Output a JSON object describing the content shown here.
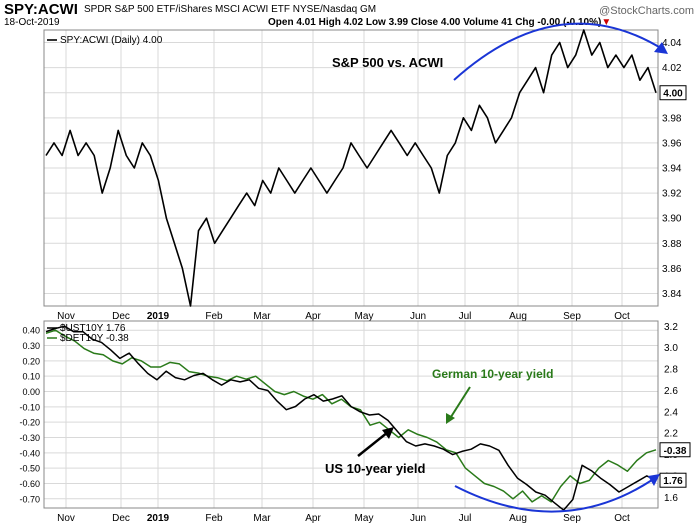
{
  "header": {
    "symbol": "SPY:ACWI",
    "description": "SPDR S&P 500 ETF/iShares MSCI ACWI ETF  NYSE/Nasdaq GM",
    "date": "18-Oct-2019",
    "ohlc": {
      "open": "Open 4.01",
      "high": "High 4.02",
      "low": "Low 3.99",
      "close": "Close 4.00",
      "volume": "Volume 41",
      "chg": "Chg -0.00 (-0.10%)"
    },
    "logo": "@StockCharts.com"
  },
  "colors": {
    "price": "#000000",
    "german": "#2a7a1a",
    "arrow": "#1a35d6",
    "grid": "#d9d9d9"
  },
  "chart_data": [
    {
      "type": "line",
      "legend": "SPY:ACWI (Daily) 4.00",
      "annotation": "S&P 500 vs. ACWI",
      "last_value_label": "4.00",
      "y_ticks": [
        "4.04",
        "4.02",
        "4.00",
        "3.98",
        "3.96",
        "3.94",
        "3.92",
        "3.90",
        "3.88",
        "3.86",
        "3.84"
      ],
      "ylim": [
        3.83,
        4.05
      ],
      "x_ticks": [
        "Nov",
        "Dec",
        "2019",
        "Feb",
        "Mar",
        "Apr",
        "May",
        "Jun",
        "Jul",
        "Aug",
        "Sep",
        "Oct"
      ],
      "series": [
        {
          "name": "SPY:ACWI",
          "values": [
            3.95,
            3.96,
            3.95,
            3.97,
            3.95,
            3.96,
            3.95,
            3.92,
            3.94,
            3.97,
            3.95,
            3.94,
            3.96,
            3.95,
            3.93,
            3.9,
            3.88,
            3.86,
            3.83,
            3.89,
            3.9,
            3.88,
            3.89,
            3.9,
            3.91,
            3.92,
            3.91,
            3.93,
            3.92,
            3.94,
            3.93,
            3.92,
            3.93,
            3.94,
            3.93,
            3.92,
            3.93,
            3.94,
            3.96,
            3.95,
            3.94,
            3.95,
            3.96,
            3.97,
            3.96,
            3.95,
            3.96,
            3.95,
            3.94,
            3.92,
            3.95,
            3.96,
            3.98,
            3.97,
            3.99,
            3.98,
            3.96,
            3.97,
            3.98,
            4.0,
            4.01,
            4.02,
            4.0,
            4.03,
            4.04,
            4.02,
            4.03,
            4.05,
            4.03,
            4.04,
            4.02,
            4.03,
            4.02,
            4.03,
            4.01,
            4.02,
            4.0
          ]
        }
      ]
    },
    {
      "type": "line",
      "legend": [
        "$UST10Y 1.76",
        "$DET10Y -0.38"
      ],
      "annotations": [
        "German 10-year yield",
        "US 10-year yield"
      ],
      "last_value_labels": [
        "-0.38",
        "1.76"
      ],
      "left_ticks": [
        "0.40",
        "0.30",
        "0.20",
        "0.10",
        "0.00",
        "-0.10",
        "-0.20",
        "-0.30",
        "-0.40",
        "-0.50",
        "-0.60",
        "-0.70"
      ],
      "right_ticks": [
        "3.2",
        "3.0",
        "2.8",
        "2.6",
        "2.4",
        "2.2",
        "2.0",
        "1.8",
        "1.6"
      ],
      "left_ylim": [
        -0.76,
        0.46
      ],
      "right_ylim": [
        1.5,
        3.25
      ],
      "x_ticks": [
        "Nov",
        "Dec",
        "2019",
        "Feb",
        "Mar",
        "Apr",
        "May",
        "Jun",
        "Jul",
        "Aug",
        "Sep",
        "Oct"
      ],
      "series": [
        {
          "name": "$UST10Y",
          "axis": "right",
          "values": [
            3.15,
            3.18,
            3.2,
            3.15,
            3.15,
            3.08,
            3.05,
            2.98,
            2.9,
            2.95,
            2.85,
            2.76,
            2.7,
            2.78,
            2.72,
            2.7,
            2.74,
            2.76,
            2.7,
            2.65,
            2.7,
            2.68,
            2.7,
            2.62,
            2.6,
            2.5,
            2.42,
            2.45,
            2.52,
            2.56,
            2.5,
            2.52,
            2.55,
            2.45,
            2.4,
            2.37,
            2.38,
            2.32,
            2.22,
            2.12,
            2.08,
            2.1,
            2.08,
            2.05,
            2.0,
            2.03,
            2.05,
            2.1,
            2.08,
            2.04,
            1.9,
            1.78,
            1.72,
            1.65,
            1.62,
            1.55,
            1.48,
            1.58,
            1.9,
            1.85,
            1.78,
            1.72,
            1.65,
            1.7,
            1.75,
            1.8,
            1.76
          ]
        },
        {
          "name": "$DET10Y",
          "axis": "left",
          "values": [
            0.38,
            0.4,
            0.36,
            0.33,
            0.28,
            0.25,
            0.24,
            0.2,
            0.18,
            0.22,
            0.2,
            0.16,
            0.16,
            0.19,
            0.18,
            0.13,
            0.12,
            0.1,
            0.09,
            0.07,
            0.1,
            0.08,
            0.1,
            0.05,
            0.0,
            -0.02,
            0.0,
            -0.03,
            -0.05,
            -0.02,
            -0.08,
            -0.05,
            -0.1,
            -0.12,
            -0.22,
            -0.2,
            -0.25,
            -0.3,
            -0.25,
            -0.28,
            -0.3,
            -0.33,
            -0.38,
            -0.4,
            -0.5,
            -0.55,
            -0.6,
            -0.62,
            -0.65,
            -0.7,
            -0.65,
            -0.72,
            -0.68,
            -0.72,
            -0.62,
            -0.55,
            -0.6,
            -0.58,
            -0.5,
            -0.45,
            -0.48,
            -0.52,
            -0.45,
            -0.4,
            -0.38
          ]
        }
      ]
    }
  ]
}
